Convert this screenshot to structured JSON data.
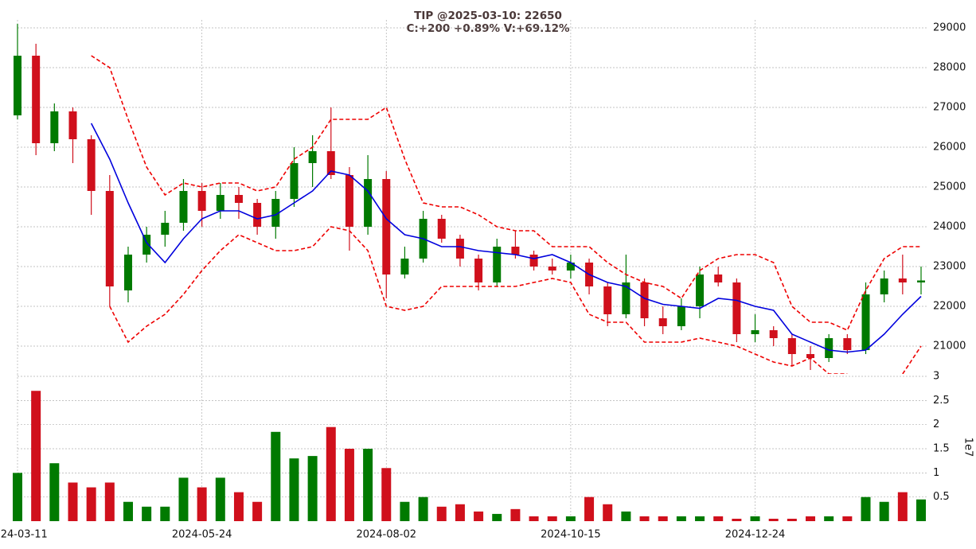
{
  "chart_data": [
    {
      "type": "candlestick",
      "title": "TIP @2025-03-10: 22650",
      "subtitle": "C:+200 +0.89% V:+69.12%",
      "categories": [
        "2024-03-11",
        null,
        null,
        null,
        null,
        null,
        null,
        null,
        null,
        null,
        "2024-05-24",
        null,
        null,
        null,
        null,
        null,
        null,
        null,
        null,
        null,
        "2024-08-02",
        null,
        null,
        null,
        null,
        null,
        null,
        null,
        null,
        null,
        "2024-10-15",
        null,
        null,
        null,
        null,
        null,
        null,
        null,
        null,
        null,
        "2024-12-24",
        null,
        null,
        null,
        null,
        null,
        null,
        null,
        null,
        null
      ],
      "open": [
        26800,
        28300,
        26100,
        26900,
        26200,
        24900,
        22400,
        23300,
        23800,
        24100,
        24900,
        24400,
        24800,
        24600,
        24000,
        24700,
        25600,
        25900,
        25300,
        24000,
        25200,
        22800,
        23200,
        24200,
        23700,
        23200,
        22600,
        23500,
        23300,
        23000,
        22900,
        23100,
        22500,
        21800,
        22600,
        21700,
        21500,
        22000,
        22800,
        22600,
        21300,
        21400,
        21200,
        20800,
        20700,
        21200,
        20900,
        22300,
        22700,
        22600
      ],
      "high": [
        29100,
        28600,
        27100,
        27000,
        26300,
        25300,
        23500,
        24000,
        24400,
        25200,
        25100,
        25100,
        25000,
        24700,
        24900,
        26000,
        26300,
        27000,
        25500,
        25800,
        25400,
        23500,
        24400,
        24300,
        23800,
        23300,
        23700,
        23900,
        23400,
        23200,
        23300,
        23200,
        22600,
        23300,
        22700,
        22000,
        22200,
        23000,
        23000,
        22700,
        21800,
        21500,
        21300,
        21000,
        21300,
        21300,
        22600,
        22900,
        23300,
        23000
      ],
      "low": [
        26700,
        25800,
        25900,
        25600,
        24300,
        22000,
        22100,
        23100,
        23500,
        23900,
        24000,
        24200,
        24200,
        23800,
        23700,
        24500,
        25000,
        25200,
        23400,
        23800,
        22200,
        22700,
        23100,
        23600,
        23000,
        22400,
        22500,
        23200,
        22900,
        22800,
        22700,
        22300,
        21500,
        21700,
        21500,
        21300,
        21400,
        21700,
        22500,
        21100,
        21100,
        21000,
        20500,
        20400,
        20600,
        20800,
        20800,
        22100,
        22300,
        22300
      ],
      "close": [
        28300,
        26100,
        26900,
        26200,
        24900,
        22500,
        23300,
        23800,
        24100,
        24900,
        24400,
        24800,
        24600,
        24000,
        24700,
        25600,
        25900,
        25300,
        24000,
        25200,
        22800,
        23200,
        24200,
        23700,
        23200,
        22600,
        23500,
        23300,
        23000,
        22900,
        23100,
        22500,
        21800,
        22600,
        21700,
        21500,
        22000,
        22800,
        22600,
        21300,
        21400,
        21200,
        20800,
        20700,
        21200,
        20900,
        22300,
        22700,
        22600,
        22650
      ],
      "up_color": "#007a00",
      "down_color": "#d0101c",
      "series": [
        {
          "color": "#0000dd",
          "dashed": false,
          "values": [
            null,
            null,
            null,
            null,
            26600,
            25700,
            24600,
            23600,
            23100,
            23700,
            24200,
            24400,
            24400,
            24200,
            24300,
            24600,
            24900,
            25400,
            25300,
            24900,
            24200,
            23800,
            23700,
            23500,
            23500,
            23400,
            23350,
            23300,
            23200,
            23300,
            23100,
            22800,
            22600,
            22500,
            22200,
            22050,
            22000,
            21950,
            22200,
            22150,
            22000,
            21900,
            21300,
            21100,
            20900,
            20850,
            20900,
            21300,
            21800,
            22250
          ]
        },
        {
          "color": "#ee0000",
          "dashed": true,
          "values": [
            null,
            null,
            null,
            null,
            28300,
            28000,
            26700,
            25500,
            24800,
            25100,
            25000,
            25100,
            25100,
            24900,
            25000,
            25700,
            26000,
            26700,
            26700,
            26700,
            27000,
            25700,
            24600,
            24500,
            24500,
            24300,
            24000,
            23900,
            23900,
            23500,
            23500,
            23500,
            23100,
            22800,
            22600,
            22500,
            22200,
            22900,
            23200,
            23300,
            23300,
            23100,
            22000,
            21600,
            21600,
            21400,
            22400,
            23200,
            23500,
            23500
          ]
        },
        {
          "color": "#ee0000",
          "dashed": true,
          "values": [
            null,
            null,
            null,
            null,
            null,
            22000,
            21100,
            21500,
            21800,
            22300,
            22900,
            23400,
            23800,
            23600,
            23400,
            23400,
            23500,
            24000,
            23900,
            23400,
            22000,
            21900,
            22000,
            22500,
            22500,
            22500,
            22500,
            22500,
            22600,
            22700,
            22600,
            21800,
            21600,
            21600,
            21100,
            21100,
            21100,
            21200,
            21100,
            21000,
            20800,
            20600,
            20500,
            20700,
            20300,
            20300,
            null,
            null,
            20300,
            21000
          ]
        }
      ],
      "ylim": [
        20300,
        29200
      ],
      "yticks": [
        21000,
        22000,
        23000,
        24000,
        25000,
        26000,
        27000,
        28000,
        29000
      ],
      "grid": true
    },
    {
      "type": "bar",
      "ylabel": "1e7",
      "values": [
        1.0,
        2.7,
        1.2,
        0.8,
        0.7,
        0.8,
        0.4,
        0.3,
        0.3,
        0.9,
        0.7,
        0.9,
        0.6,
        0.4,
        1.85,
        1.3,
        1.35,
        1.95,
        1.5,
        1.5,
        1.1,
        0.4,
        0.5,
        0.3,
        0.35,
        0.2,
        0.15,
        0.25,
        0.1,
        0.1,
        0.1,
        0.5,
        0.35,
        0.2,
        0.1,
        0.1,
        0.1,
        0.1,
        0.1,
        0.05,
        0.1,
        0.05,
        0.05,
        0.1,
        0.1,
        0.1,
        0.5,
        0.4,
        0.6,
        0.45
      ],
      "ylim": [
        0,
        3.05
      ],
      "yticks": [
        0.5,
        1.0,
        1.5,
        2.0,
        2.5,
        3.0
      ],
      "grid": true
    }
  ]
}
